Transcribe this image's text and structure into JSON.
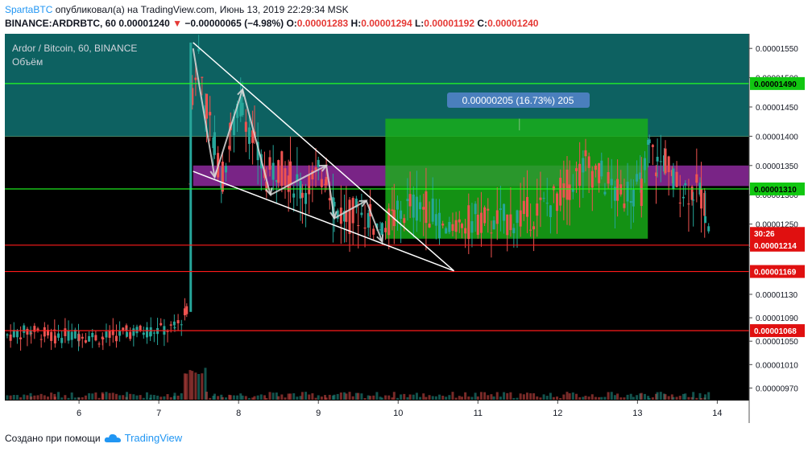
{
  "header": {
    "author": "SpartaBTC",
    "published_text": "опубликовал(а) на TradingView.com, Июнь 13, 2019 22:29:34 MSK",
    "symbol": "BINANCE:ARDRBTC, 60",
    "last": "0.00001240",
    "change": "−0.00000065 (−4.98%)",
    "o_label": "O:",
    "o": "0.00001283",
    "h_label": "H:",
    "h": "0.00001294",
    "l_label": "L:",
    "l": "0.00001192",
    "c_label": "C:",
    "c": "0.00001240"
  },
  "legend": {
    "title": "Ardor / Bitcoin, 60, BINANCE",
    "volume_label": "Объём"
  },
  "measure_label": "0.00000205 (16.73%) 205",
  "price_badges": {
    "h1490": "0.00001490",
    "h1310": "0.00001310",
    "countdown": "30:26",
    "h1214": "0.00001214",
    "h1169": "0.00001169",
    "h1068": "0.00001068"
  },
  "footer": {
    "created_with": "Создано при помощи",
    "brand": "TradingView"
  },
  "colors": {
    "up": "#26a69a",
    "down": "#ef5350",
    "teal_zone": "#0e6b6b",
    "green_box": "#19b119",
    "purple_zone": "#8e2a9e",
    "green_line": "#22ff22",
    "red_line": "#ff1a1a"
  },
  "chart_data": {
    "type": "candlestick",
    "title": "Ardor / Bitcoin, 60, BINANCE",
    "ylim": [
      9.5e-06,
      1.575e-05
    ],
    "y_ticks": [
      "0.00001550",
      "0.00001500",
      "0.00001450",
      "0.00001400",
      "0.00001350",
      "0.00001300",
      "0.00001250",
      "0.00001210",
      "0.00001130",
      "0.00001090",
      "0.00001050",
      "0.00001010",
      "0.00000970"
    ],
    "y_tick_values": [
      1.55e-05,
      1.5e-05,
      1.45e-05,
      1.4e-05,
      1.35e-05,
      1.3e-05,
      1.25e-05,
      1.21e-05,
      1.13e-05,
      1.09e-05,
      1.05e-05,
      1.01e-05,
      9.7e-06
    ],
    "x_ticks": [
      "6",
      "7",
      "8",
      "9",
      "10",
      "11",
      "12",
      "13",
      "14"
    ],
    "x_tick_values": [
      6,
      7,
      8,
      9,
      10,
      11,
      12,
      13,
      14
    ],
    "xlim": [
      5.07,
      14.4
    ],
    "horizontal_levels": [
      {
        "value": 1.49e-05,
        "color": "green"
      },
      {
        "value": 1.31e-05,
        "color": "green"
      },
      {
        "value": 1.214e-05,
        "color": "red"
      },
      {
        "value": 1.169e-05,
        "color": "red"
      },
      {
        "value": 1.068e-05,
        "color": "red"
      }
    ],
    "zones": [
      {
        "name": "teal",
        "y1": 1.4e-05,
        "y2": 1.575e-05,
        "x1": 5.07,
        "x2": 14.4
      },
      {
        "name": "purple",
        "y1": 1.315e-05,
        "y2": 1.35e-05,
        "x1": 7.43,
        "x2": 14.4
      }
    ],
    "measure_box": {
      "x1": 9.84,
      "x2": 13.13,
      "y1": 1.225e-05,
      "y2": 1.43e-05
    },
    "candles_path": [
      [
        5.1,
        1.06e-05
      ],
      [
        5.4,
        1.068e-05
      ],
      [
        5.7,
        1.058e-05
      ],
      [
        6.0,
        1.062e-05
      ],
      [
        6.3,
        1.055e-05
      ],
      [
        6.6,
        1.065e-05
      ],
      [
        6.9,
        1.068e-05
      ],
      [
        7.2,
        1.072e-05
      ],
      [
        7.35,
        1.1e-05
      ],
      [
        7.42,
        1.48e-05
      ],
      [
        7.5,
        1.54e-05
      ],
      [
        7.6,
        1.45e-05
      ],
      [
        7.7,
        1.38e-05
      ],
      [
        7.8,
        1.33e-05
      ],
      [
        7.9,
        1.4e-05
      ],
      [
        8.05,
        1.46e-05
      ],
      [
        8.2,
        1.38e-05
      ],
      [
        8.35,
        1.33e-05
      ],
      [
        8.5,
        1.35e-05
      ],
      [
        8.65,
        1.33e-05
      ],
      [
        8.8,
        1.31e-05
      ],
      [
        9.0,
        1.33e-05
      ],
      [
        9.1,
        1.34e-05
      ],
      [
        9.2,
        1.28e-05
      ],
      [
        9.35,
        1.26e-05
      ],
      [
        9.5,
        1.27e-05
      ],
      [
        9.65,
        1.26e-05
      ],
      [
        9.8,
        1.24e-05
      ],
      [
        9.95,
        1.26e-05
      ],
      [
        10.15,
        1.28e-05
      ],
      [
        10.35,
        1.28e-05
      ],
      [
        10.6,
        1.24e-05
      ],
      [
        10.8,
        1.25e-05
      ],
      [
        11.0,
        1.26e-05
      ],
      [
        11.2,
        1.25e-05
      ],
      [
        11.45,
        1.26e-05
      ],
      [
        11.7,
        1.27e-05
      ],
      [
        11.95,
        1.29e-05
      ],
      [
        12.15,
        1.32e-05
      ],
      [
        12.35,
        1.35e-05
      ],
      [
        12.55,
        1.33e-05
      ],
      [
        12.75,
        1.3e-05
      ],
      [
        12.95,
        1.31e-05
      ],
      [
        13.05,
        1.31e-05
      ],
      [
        13.15,
        1.38e-05
      ],
      [
        13.25,
        1.35e-05
      ],
      [
        13.35,
        1.36e-05
      ],
      [
        13.45,
        1.32e-05
      ],
      [
        13.6,
        1.31e-05
      ],
      [
        13.7,
        1.31e-05
      ],
      [
        13.8,
        1.3e-05
      ],
      [
        13.85,
        1.28e-05
      ],
      [
        13.9,
        1.24e-05
      ]
    ],
    "drawings": {
      "upper_trend": [
        [
          7.43,
          1.56e-05
        ],
        [
          10.7,
          1.17e-05
        ]
      ],
      "lower_trend": [
        [
          7.43,
          1.34e-05
        ],
        [
          10.7,
          1.17e-05
        ]
      ],
      "zigzag_arrows": [
        [
          7.43,
          1.55e-05
        ],
        [
          7.7,
          1.33e-05
        ],
        [
          8.05,
          1.48e-05
        ],
        [
          8.4,
          1.3e-05
        ],
        [
          9.1,
          1.35e-05
        ],
        [
          9.2,
          1.26e-05
        ],
        [
          9.6,
          1.29e-05
        ],
        [
          9.8,
          1.22e-05
        ]
      ]
    }
  }
}
